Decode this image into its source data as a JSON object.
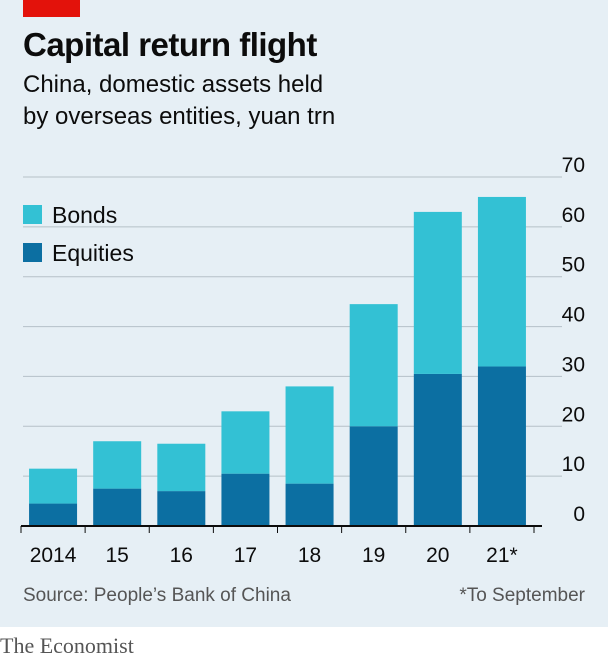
{
  "header": {
    "title": "Capital return flight",
    "subtitle_line1": "China, domestic assets held",
    "subtitle_line2": "by overseas entities, yuan trn"
  },
  "footer": {
    "source": "Source: People’s Bank of China",
    "footnote": "*To September",
    "brand": "The Economist"
  },
  "colors": {
    "accent": "#e3120b",
    "bonds": "#33c1d4",
    "equities": "#0c6fa2",
    "axis": "#0c0c0c",
    "grid": "#b5c0c8",
    "text": "#0c0c0c"
  },
  "chart_data": {
    "type": "bar",
    "stacked": true,
    "categories": [
      "2014",
      "15",
      "16",
      "17",
      "18",
      "19",
      "20",
      "21*"
    ],
    "series": [
      {
        "name": "Equities",
        "values": [
          4.5,
          7.5,
          7,
          10.5,
          8.5,
          20,
          30.5,
          32
        ]
      },
      {
        "name": "Bonds",
        "values": [
          7,
          9.5,
          9.5,
          12.5,
          19.5,
          24.5,
          32.5,
          34
        ]
      }
    ],
    "legend": [
      "Bonds",
      "Equities"
    ],
    "yticks": [
      "0",
      "10",
      "20",
      "30",
      "40",
      "50",
      "60",
      "70"
    ],
    "ylim": [
      0,
      70
    ],
    "ylabel": "yuan trn",
    "y_axis_side": "right",
    "grid": true
  }
}
